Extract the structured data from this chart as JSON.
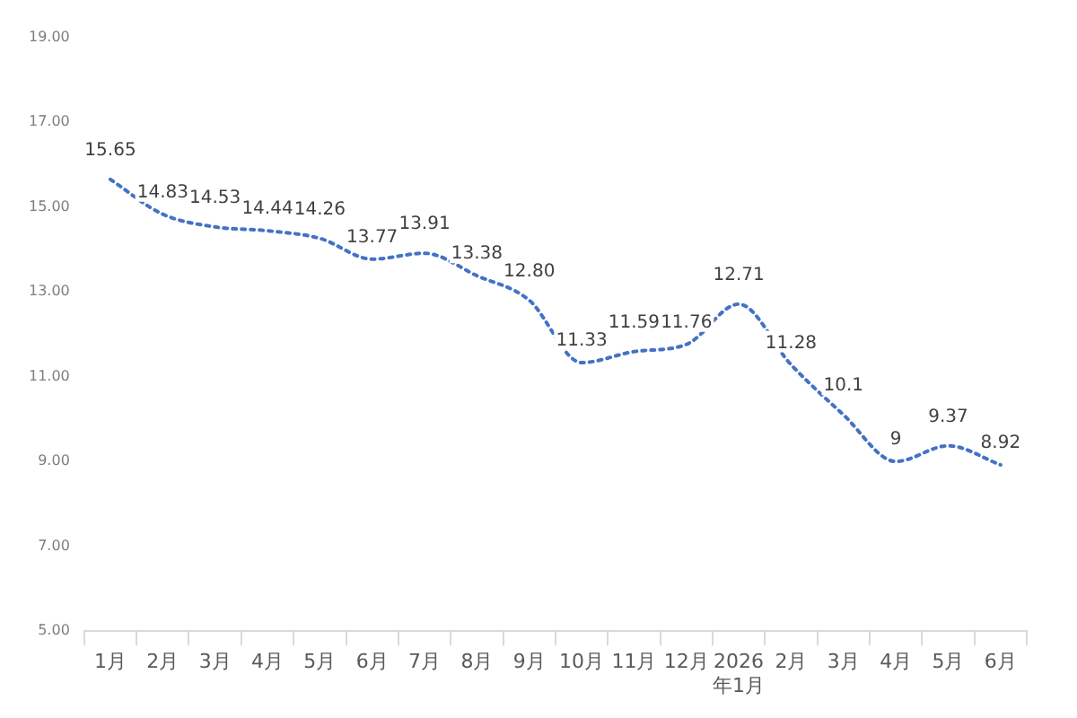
{
  "chart_data": {
    "type": "line",
    "categories": [
      "1月",
      "2月",
      "3月",
      "4月",
      "5月",
      "6月",
      "7月",
      "8月",
      "9月",
      "10月",
      "11月",
      "12月",
      "2026\n年1月",
      "2月",
      "3月",
      "4月",
      "5月",
      "6月"
    ],
    "series": [
      {
        "color": "#4472c4",
        "values": [
          15.65,
          14.83,
          14.53,
          14.44,
          14.26,
          13.77,
          13.91,
          13.38,
          12.8,
          11.33,
          11.59,
          11.76,
          12.71,
          11.28,
          10.1,
          9,
          9.37,
          8.92
        ],
        "value_labels": [
          "15.65",
          "14.83",
          "14.53",
          "14.44",
          "14.26",
          "13.77",
          "13.91",
          "13.38",
          "12.80",
          "11.33",
          "11.59",
          "11.76",
          "12.71",
          "11.28",
          "10.1",
          "9",
          "9.37",
          "8.92"
        ]
      }
    ],
    "ylim": [
      5,
      19
    ],
    "yticks": [
      {
        "value": 5,
        "label": "5.00"
      },
      {
        "value": 7,
        "label": "7.00"
      },
      {
        "value": 9,
        "label": "9.00"
      },
      {
        "value": 11,
        "label": "11.00"
      },
      {
        "value": 13,
        "label": "13.00"
      },
      {
        "value": 15,
        "label": "15.00"
      },
      {
        "value": 17,
        "label": "17.00"
      },
      {
        "value": 19,
        "label": "19.00"
      }
    ],
    "grid": false,
    "legend": false,
    "marker": "none",
    "line_style": "dotted"
  }
}
